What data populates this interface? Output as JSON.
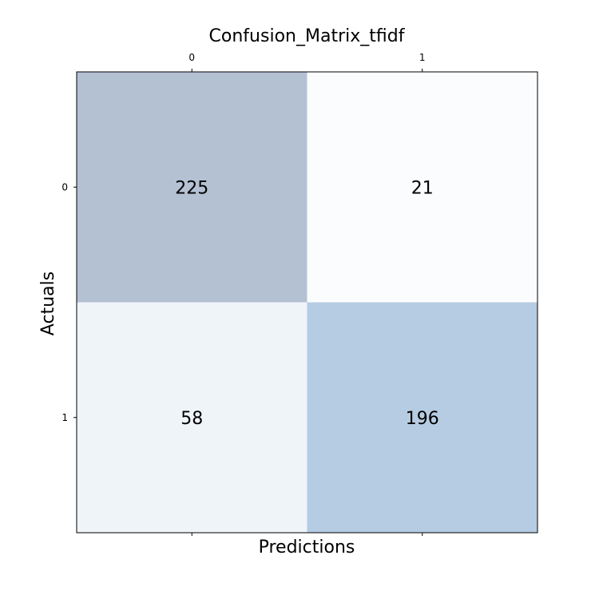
{
  "chart_data": {
    "type": "heatmap",
    "title": "Confusion_Matrix_tfidf",
    "xlabel": "Predictions",
    "ylabel": "Actuals",
    "x_categories": [
      "0",
      "1"
    ],
    "y_categories": [
      "0",
      "1"
    ],
    "values": [
      [
        225,
        21
      ],
      [
        58,
        196
      ]
    ],
    "cell_colors": [
      [
        "#b4c1d3",
        "#fbfcfe"
      ],
      [
        "#eff4f9",
        "#b6cce3"
      ]
    ],
    "x_ticks_position": "top",
    "grid": false,
    "legend": "none"
  }
}
